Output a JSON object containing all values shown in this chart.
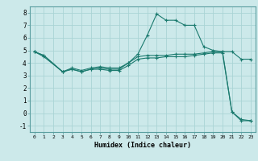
{
  "xlabel": "Humidex (Indice chaleur)",
  "bg_color": "#cce9ea",
  "grid_color": "#aad4d5",
  "line_color": "#1a7a6e",
  "xlim": [
    -0.5,
    23.5
  ],
  "ylim": [
    -1.5,
    8.5
  ],
  "xticks": [
    0,
    1,
    2,
    3,
    4,
    5,
    6,
    7,
    8,
    9,
    10,
    11,
    12,
    13,
    14,
    15,
    16,
    17,
    18,
    19,
    20,
    21,
    22,
    23
  ],
  "yticks": [
    -1,
    0,
    1,
    2,
    3,
    4,
    5,
    6,
    7,
    8
  ],
  "line1_x": [
    0,
    1,
    3,
    4,
    5,
    6,
    7,
    8,
    9,
    10,
    11,
    12,
    13,
    14,
    15,
    16,
    17,
    18,
    19,
    20,
    21,
    22,
    23
  ],
  "line1_y": [
    4.9,
    4.6,
    3.3,
    3.5,
    3.3,
    3.5,
    3.6,
    3.5,
    3.5,
    4.0,
    4.7,
    6.2,
    7.9,
    7.4,
    7.4,
    7.0,
    7.0,
    5.3,
    5.0,
    4.9,
    0.1,
    -0.6,
    -0.6
  ],
  "line2_x": [
    0,
    1,
    3,
    4,
    5,
    6,
    7,
    8,
    9,
    10,
    11,
    12,
    13,
    14,
    15,
    16,
    17,
    18,
    19,
    20,
    21,
    22,
    23
  ],
  "line2_y": [
    4.9,
    4.6,
    3.3,
    3.6,
    3.4,
    3.6,
    3.7,
    3.6,
    3.6,
    4.0,
    4.5,
    4.6,
    4.6,
    4.6,
    4.7,
    4.7,
    4.7,
    4.8,
    4.9,
    4.9,
    4.9,
    4.3,
    4.3
  ],
  "line3_x": [
    0,
    1,
    3,
    4,
    5,
    6,
    7,
    8,
    9,
    10,
    11,
    12,
    13,
    14,
    15,
    16,
    17,
    18,
    19,
    20,
    21,
    22,
    23
  ],
  "line3_y": [
    4.9,
    4.5,
    3.3,
    3.5,
    3.3,
    3.5,
    3.5,
    3.4,
    3.4,
    3.8,
    4.3,
    4.4,
    4.4,
    4.5,
    4.5,
    4.5,
    4.6,
    4.7,
    4.8,
    4.8,
    0.1,
    -0.5,
    -0.6
  ]
}
